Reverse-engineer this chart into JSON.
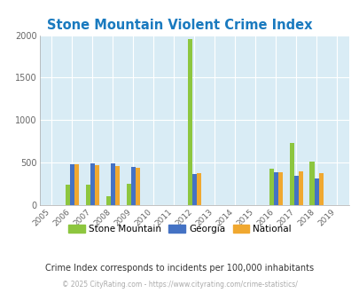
{
  "title": "Stone Mountain Violent Crime Index",
  "years": [
    2005,
    2006,
    2007,
    2008,
    2009,
    2010,
    2011,
    2012,
    2013,
    2014,
    2015,
    2016,
    2017,
    2018,
    2019
  ],
  "stone_mountain": [
    0,
    240,
    240,
    100,
    250,
    0,
    0,
    1950,
    0,
    0,
    0,
    430,
    730,
    510,
    0
  ],
  "georgia": [
    0,
    480,
    490,
    490,
    450,
    0,
    0,
    370,
    0,
    0,
    0,
    390,
    350,
    310,
    0
  ],
  "national": [
    0,
    480,
    470,
    460,
    440,
    0,
    0,
    380,
    0,
    0,
    0,
    390,
    395,
    375,
    0
  ],
  "color_sm": "#8dc63f",
  "color_ga": "#4472c4",
  "color_na": "#f0a830",
  "bg_color": "#d9ecf5",
  "ylim": [
    0,
    2000
  ],
  "yticks": [
    0,
    500,
    1000,
    1500,
    2000
  ],
  "subtitle": "Crime Index corresponds to incidents per 100,000 inhabitants",
  "footer": "© 2025 CityRating.com - https://www.cityrating.com/crime-statistics/",
  "title_color": "#1a7abf",
  "subtitle_color": "#333333",
  "footer_color": "#aaaaaa",
  "grid_color": "#c0d8e4"
}
